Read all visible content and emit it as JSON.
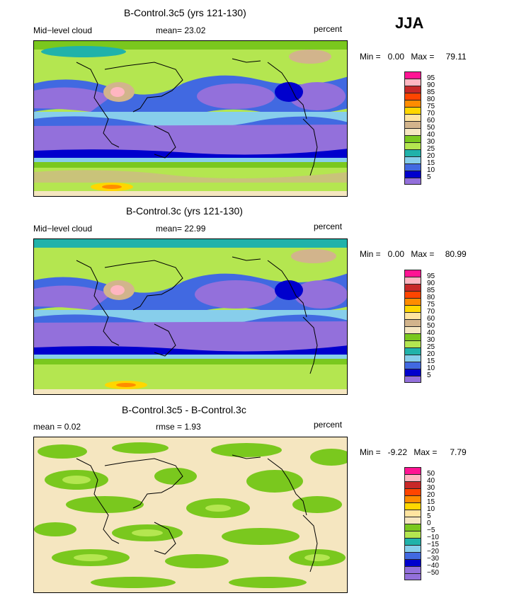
{
  "season": "JJA",
  "panels": [
    {
      "title": "B-Control.3c5 (yrs 121-130)",
      "left_label": "Mid−level cloud",
      "mid_label": "mean=  23.02",
      "units": "percent",
      "min_label": "Min =",
      "min_value": "0.00",
      "max_label": "Max =",
      "max_value": "79.11",
      "colorbar": {
        "labels": [
          "95",
          "90",
          "85",
          "80",
          "75",
          "70",
          "60",
          "50",
          "40",
          "30",
          "25",
          "20",
          "15",
          "10",
          "5"
        ],
        "colors": [
          "#ff1493",
          "#ffb6c1",
          "#c82828",
          "#ff4500",
          "#ff8c00",
          "#ffd700",
          "#ffe4a0",
          "#d2b48c",
          "#f5e6c0",
          "#7ac81e",
          "#b4e650",
          "#20b2aa",
          "#87ceeb",
          "#4169e1",
          "#0000cd",
          "#9370db"
        ]
      }
    },
    {
      "title": "B-Control.3c (yrs 121-130)",
      "left_label": "Mid−level cloud",
      "mid_label": "mean=  22.99",
      "units": "percent",
      "min_label": "Min =",
      "min_value": "0.00",
      "max_label": "Max =",
      "max_value": "80.99",
      "colorbar": {
        "labels": [
          "95",
          "90",
          "85",
          "80",
          "75",
          "70",
          "60",
          "50",
          "40",
          "30",
          "25",
          "20",
          "15",
          "10",
          "5"
        ],
        "colors": [
          "#ff1493",
          "#ffb6c1",
          "#c82828",
          "#ff4500",
          "#ff8c00",
          "#ffd700",
          "#ffe4a0",
          "#d2b48c",
          "#f5e6c0",
          "#7ac81e",
          "#b4e650",
          "#20b2aa",
          "#87ceeb",
          "#4169e1",
          "#0000cd",
          "#9370db"
        ]
      }
    },
    {
      "title": "B-Control.3c5 - B-Control.3c",
      "left_label": "mean =    0.02",
      "mid_label": "rmse =    1.93",
      "units": "percent",
      "min_label": "Min =",
      "min_value": "-9.22",
      "max_label": "Max =",
      "max_value": "7.79",
      "colorbar": {
        "labels": [
          "50",
          "40",
          "30",
          "20",
          "15",
          "10",
          "5",
          "0",
          "−5",
          "−10",
          "−15",
          "−20",
          "−30",
          "−40",
          "−50"
        ],
        "colors": [
          "#ff1493",
          "#ffb6c1",
          "#c82828",
          "#ff4500",
          "#ff8c00",
          "#ffd700",
          "#ffe4a0",
          "#f5e6c0",
          "#7ac81e",
          "#b4e650",
          "#20b2aa",
          "#87ceeb",
          "#4169e1",
          "#0000cd",
          "#9370db",
          "#9370db"
        ]
      }
    }
  ]
}
